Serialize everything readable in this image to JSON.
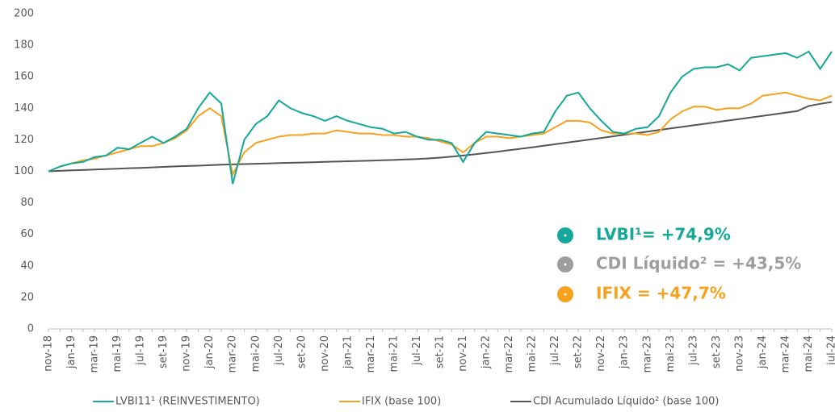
{
  "chart_data": {
    "type": "line",
    "categories": [
      "nov-18",
      null,
      "jan-19",
      null,
      "mar-19",
      null,
      "mai-19",
      null,
      "jul-19",
      null,
      "set-19",
      null,
      "nov-19",
      null,
      "jan-20",
      null,
      "mar-20",
      null,
      "mai-20",
      null,
      "jul-20",
      null,
      "set-20",
      null,
      "nov-20",
      null,
      "jan-21",
      null,
      "mar-21",
      null,
      "mai-21",
      null,
      "jul-21",
      null,
      "set-21",
      null,
      "nov-21",
      null,
      "jan-22",
      null,
      "mar-22",
      null,
      "mai-22",
      null,
      "jul-22",
      null,
      "set-22",
      null,
      "nov-22",
      null,
      "jan-23",
      null,
      "mar-23",
      null,
      "mai-23",
      null,
      "jul-23",
      null,
      "set-23",
      null,
      "nov-23",
      null,
      "jan-24",
      null,
      "mar-24",
      null,
      "mai-24",
      null,
      "jul-24"
    ],
    "series": [
      {
        "name": "LVBI11¹ (REINVESTIMENTO)",
        "color": "#14a89a",
        "values": [
          100,
          103,
          105,
          106,
          109,
          110,
          115,
          114,
          118,
          122,
          118,
          122,
          127,
          140,
          150,
          143,
          92,
          120,
          130,
          135,
          145,
          140,
          137,
          135,
          132,
          135,
          132,
          130,
          128,
          127,
          124,
          125,
          122,
          120,
          120,
          118,
          106,
          118,
          125,
          124,
          123,
          122,
          124,
          125,
          138,
          148,
          150,
          140,
          132,
          125,
          124,
          127,
          128,
          135,
          150,
          160,
          165,
          166,
          166,
          168,
          164,
          172,
          173,
          174,
          175,
          172,
          176,
          165,
          176
        ]
      },
      {
        "name": "IFIX (base 100)",
        "color": "#f7a11f",
        "values": [
          100,
          103,
          105,
          107,
          108,
          110,
          112,
          114,
          116,
          116,
          118,
          121,
          126,
          135,
          140,
          135,
          98,
          112,
          118,
          120,
          122,
          123,
          123,
          124,
          124,
          126,
          125,
          124,
          124,
          123,
          123,
          122,
          122,
          121,
          119,
          117,
          112,
          118,
          122,
          122,
          121,
          122,
          123,
          124,
          128,
          132,
          132,
          131,
          126,
          124,
          124,
          124,
          123,
          125,
          133,
          138,
          141,
          141,
          139,
          140,
          140,
          143,
          148,
          149,
          150,
          148,
          146,
          145,
          148
        ]
      },
      {
        "name": "CDI Acumulado Líquido² (base 100)",
        "color": "#555555",
        "values": [
          100,
          100.3,
          100.6,
          100.8,
          101.1,
          101.4,
          101.7,
          102,
          102.2,
          102.5,
          102.8,
          103.1,
          103.4,
          103.6,
          103.9,
          104.2,
          104.4,
          104.6,
          104.8,
          105,
          105.2,
          105.4,
          105.6,
          105.8,
          106,
          106.2,
          106.4,
          106.6,
          106.8,
          107,
          107.2,
          107.5,
          107.8,
          108.2,
          108.7,
          109.3,
          110,
          110.8,
          111.6,
          112.5,
          113.4,
          114.3,
          115.2,
          116.2,
          117.2,
          118.2,
          119.2,
          120.2,
          121.2,
          122.2,
          123.2,
          124.2,
          125.2,
          126.2,
          127.2,
          128.2,
          129.2,
          130.2,
          131.2,
          132.2,
          133.2,
          134.2,
          135.2,
          136.2,
          137.2,
          138.2,
          141.5,
          142.8,
          144
        ]
      }
    ],
    "annotations": [
      {
        "text": "LVBI¹= +74,9%",
        "color": "#14a89a"
      },
      {
        "text": "CDI Líquido² = +43,5%",
        "color": "#9e9e9e"
      },
      {
        "text": "IFIX = +47,7%",
        "color": "#f7a11f"
      }
    ],
    "ylim": [
      0,
      200
    ],
    "yticks": [
      0,
      20,
      40,
      60,
      80,
      100,
      120,
      140,
      160,
      180,
      200
    ],
    "grid": false
  }
}
